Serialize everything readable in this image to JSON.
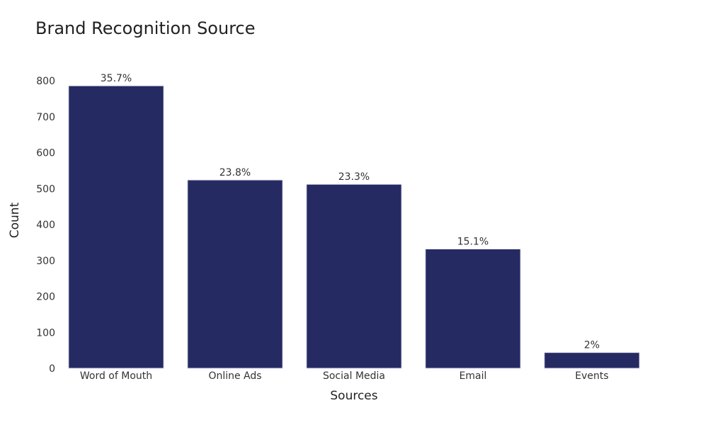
{
  "chart_data": {
    "type": "bar",
    "title": "Brand Recognition Source",
    "xlabel": "Sources",
    "ylabel": "Count",
    "categories": [
      "Word of Mouth",
      "Online Ads",
      "Social Media",
      "Email",
      "Events"
    ],
    "values": [
      786,
      524,
      512,
      332,
      44
    ],
    "data_labels": [
      "35.7%",
      "23.8%",
      "23.3%",
      "15.1%",
      "2%"
    ],
    "ylim": [
      0,
      800
    ],
    "yticks": [
      0,
      100,
      200,
      300,
      400,
      500,
      600,
      700,
      800
    ],
    "grid": false,
    "legend": "none",
    "bar_color": "#252a63"
  }
}
